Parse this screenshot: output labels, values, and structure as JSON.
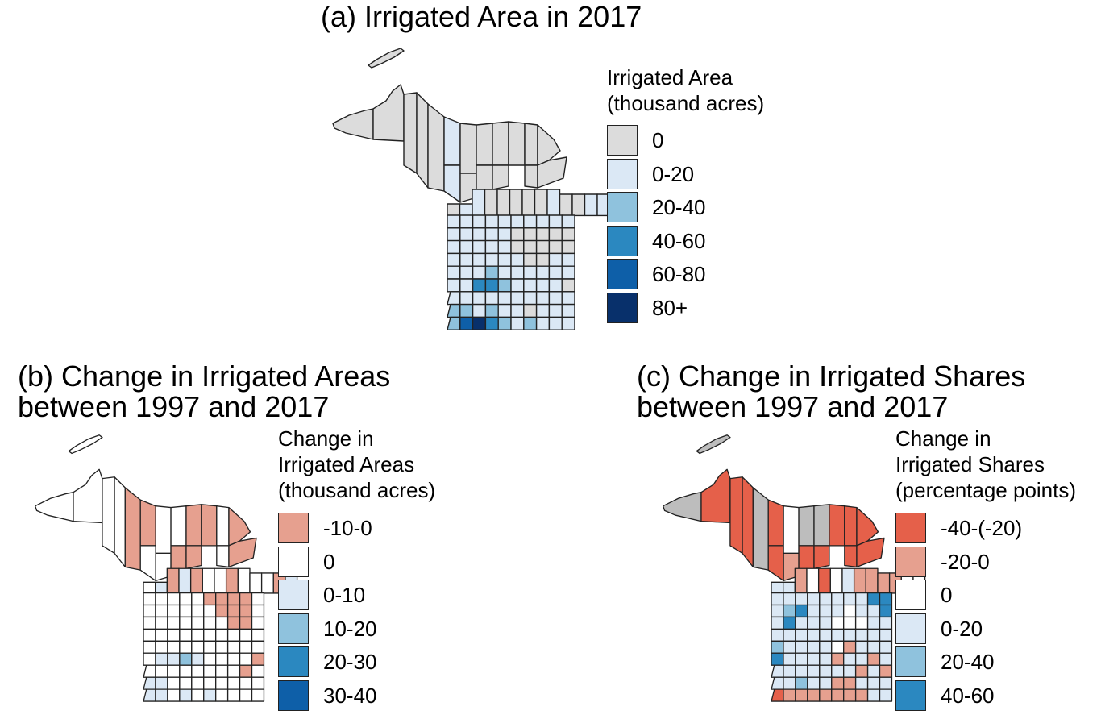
{
  "panel_a": {
    "title": "(a) Irrigated Area in 2017",
    "legend_title": "Irrigated Area\n(thousand acres)",
    "legend": [
      {
        "label": "0",
        "color": "#dcdcdc"
      },
      {
        "label": "0-20",
        "color": "#dbe8f5"
      },
      {
        "label": "20-40",
        "color": "#8fc2dd"
      },
      {
        "label": "40-60",
        "color": "#2b88c0"
      },
      {
        "label": "60-80",
        "color": "#0e5fa8"
      },
      {
        "label": "80+",
        "color": "#08306b"
      }
    ],
    "counties": [
      [
        "00000110000000",
        "0000"
      ],
      [
        "011000001",
        "0011"
      ],
      [
        1,
        1,
        1,
        1,
        1,
        1,
        1,
        1,
        1,
        1
      ],
      [
        1,
        1,
        1,
        1,
        1,
        0,
        0,
        0,
        0,
        0
      ],
      [
        1,
        1,
        1,
        1,
        1,
        0,
        0,
        0,
        0,
        0
      ],
      [
        1,
        1,
        1,
        1,
        1,
        1,
        0,
        0,
        1,
        1
      ],
      [
        1,
        1,
        1,
        2,
        1,
        1,
        1,
        1,
        1,
        1
      ],
      [
        1,
        1,
        3,
        3,
        2,
        1,
        1,
        1,
        1,
        0
      ],
      [
        1,
        1,
        1,
        1,
        1,
        1,
        1,
        1,
        1,
        1
      ],
      [
        2,
        2,
        1,
        2,
        1,
        1,
        0,
        1,
        1,
        1
      ],
      [
        2,
        4,
        5,
        3,
        2,
        1,
        2,
        1,
        1,
        1
      ]
    ]
  },
  "panel_b": {
    "title": "(b) Change in Irrigated Areas\nbetween 1997 and 2017",
    "legend_title": "Change in\nIrrigated Areas\n(thousand acres)",
    "legend": [
      {
        "label": "-10-0",
        "color": "#e6a08f"
      },
      {
        "label": "0",
        "color": "#ffffff"
      },
      {
        "label": "0-10",
        "color": "#dbe8f5"
      },
      {
        "label": "10-20",
        "color": "#8fc2dd"
      },
      {
        "label": "20-30",
        "color": "#2b88c0"
      },
      {
        "label": "30-40",
        "color": "#0e5fa8"
      }
    ],
    "counties": [
      [
        "11110011110000",
        "1100"
      ],
      [
        "120201101",
        "1102"
      ],
      [
        1,
        1,
        1,
        1,
        1,
        0,
        0,
        0,
        0,
        1
      ],
      [
        1,
        1,
        1,
        1,
        1,
        1,
        0,
        0,
        0,
        1
      ],
      [
        1,
        1,
        1,
        1,
        1,
        1,
        1,
        0,
        0,
        1
      ],
      [
        1,
        1,
        1,
        1,
        1,
        1,
        1,
        1,
        1,
        1
      ],
      [
        1,
        1,
        1,
        1,
        1,
        1,
        1,
        1,
        1,
        1
      ],
      [
        1,
        2,
        2,
        3,
        2,
        1,
        1,
        1,
        1,
        0
      ],
      [
        1,
        1,
        1,
        1,
        1,
        1,
        1,
        1,
        0,
        1
      ],
      [
        2,
        2,
        1,
        1,
        1,
        1,
        1,
        1,
        1,
        1
      ],
      [
        2,
        2,
        1,
        2,
        1,
        2,
        1,
        1,
        1,
        1
      ]
    ]
  },
  "panel_c": {
    "title": "(c) Change in Irrigated Shares\nbetween 1997 and 2017",
    "legend_title": "Change in\nIrrigated Shares\n(percentage points)",
    "legend": [
      {
        "label": "-40-(-20)",
        "color": "#e5604a"
      },
      {
        "label": "-20-0",
        "color": "#e6a08f"
      },
      {
        "label": "0",
        "color": "#ffffff"
      },
      {
        "label": "0-20",
        "color": "#dbe8f5"
      },
      {
        "label": "20-40",
        "color": "#8fc2dd"
      },
      {
        "label": "40-60",
        "color": "#2b88c0"
      }
    ],
    "counties": [
      [
        "G000G0021G0G",
        "00"
      ],
      [
        "331202311",
        "1122"
      ],
      [
        3,
        3,
        3,
        3,
        3,
        3,
        3,
        3,
        5,
        5
      ],
      [
        3,
        4,
        5,
        3,
        3,
        3,
        2,
        3,
        3,
        5
      ],
      [
        3,
        5,
        3,
        3,
        3,
        2,
        2,
        2,
        3,
        3
      ],
      [
        3,
        3,
        3,
        3,
        3,
        3,
        3,
        3,
        3,
        3
      ],
      [
        4,
        3,
        3,
        3,
        3,
        2,
        1,
        3,
        3,
        3
      ],
      [
        5,
        3,
        3,
        3,
        3,
        1,
        3,
        3,
        1,
        3
      ],
      [
        3,
        3,
        3,
        3,
        3,
        3,
        3,
        1,
        3,
        1
      ],
      [
        3,
        3,
        4,
        3,
        3,
        1,
        1,
        3,
        3,
        3
      ],
      [
        0,
        1,
        1,
        1,
        1,
        1,
        1,
        1,
        3,
        3
      ]
    ]
  }
}
